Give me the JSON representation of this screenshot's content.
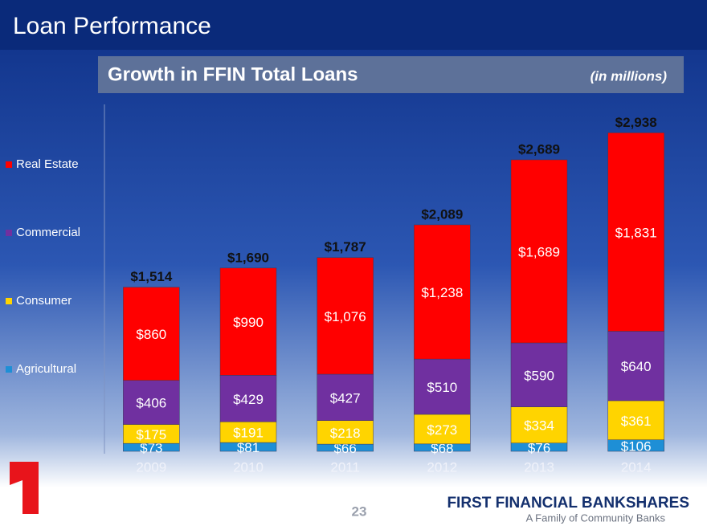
{
  "page": {
    "title": "Loan Performance",
    "page_number": "23",
    "company": "FIRST FINANCIAL BANKSHARES",
    "tagline": "A Family of Community Banks"
  },
  "chart_data": {
    "type": "stacked-bar",
    "title": "Growth in FFIN Total Loans",
    "subtitle": "(in millions)",
    "categories": [
      "2009",
      "2010",
      "2011",
      "2012",
      "2013",
      "2014"
    ],
    "ylim": [
      0,
      3200
    ],
    "legend": "left",
    "series": [
      {
        "name": "Agricultural",
        "color": "#1e8fd6",
        "values": [
          73,
          81,
          66,
          68,
          76,
          106
        ],
        "value_labels": [
          "$73",
          "$81",
          "$66",
          "$68",
          "$76",
          "$106"
        ]
      },
      {
        "name": "Consumer",
        "color": "#ffd400",
        "values": [
          175,
          191,
          218,
          273,
          334,
          361
        ],
        "value_labels": [
          "$175",
          "$191",
          "$218",
          "$273",
          "$334",
          "$361"
        ]
      },
      {
        "name": "Commercial",
        "color": "#7030a0",
        "values": [
          406,
          429,
          427,
          510,
          590,
          640
        ],
        "value_labels": [
          "$406",
          "$429",
          "$427",
          "$510",
          "$590",
          "$640"
        ]
      },
      {
        "name": "Real Estate",
        "color": "#ff0000",
        "values": [
          860,
          990,
          1076,
          1238,
          1689,
          1831
        ],
        "value_labels": [
          "$860",
          "$990",
          "$1,076",
          "$1,238",
          "$1,689",
          "$1,831"
        ]
      }
    ],
    "totals": {
      "values": [
        1514,
        1690,
        1787,
        2089,
        2689,
        2938
      ],
      "value_labels": [
        "$1,514",
        "$1,690",
        "$1,787",
        "$2,089",
        "$2,689",
        "$2,938"
      ]
    }
  }
}
